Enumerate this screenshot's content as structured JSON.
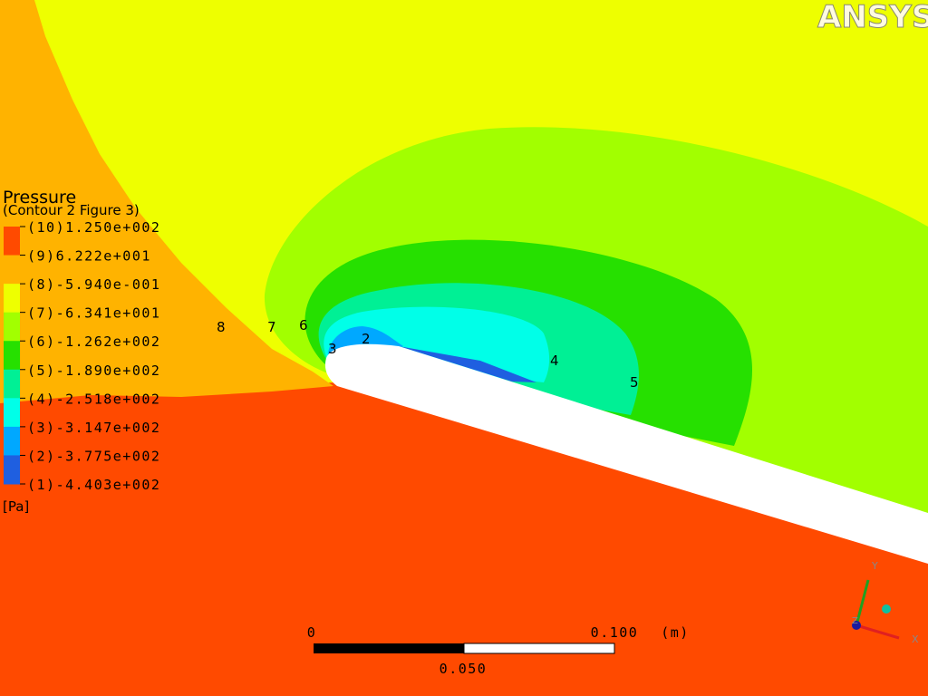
{
  "logo": "ANSYS",
  "legend": {
    "title": "Pressure",
    "subtitle": "(Contour 2 Figure 3)",
    "levels": [
      "(10)1.250e+002",
      "(9)6.222e+001",
      "(8)-5.940e-001",
      "(7)-6.341e+001",
      "(6)-1.262e+002",
      "(5)-1.890e+002",
      "(4)-2.518e+002",
      "(3)-3.147e+002",
      "(2)-3.775e+002",
      "(1)-4.403e+002"
    ],
    "colors": [
      "#ff4a00",
      "#ffb300",
      "#eeff00",
      "#a2ff00",
      "#26e000",
      "#00f095",
      "#00ffe8",
      "#00a8ff",
      "#1f5fe0"
    ],
    "unit": "[Pa]"
  },
  "contour_labels": [
    "8",
    "7",
    "6",
    "3",
    "2",
    "4",
    "5"
  ],
  "scale_bar": {
    "start": "0",
    "end": "0.100",
    "unit": "(m)",
    "middle": "0.050"
  },
  "triad": {
    "y": "Y",
    "x": "X",
    "z": "Z"
  }
}
